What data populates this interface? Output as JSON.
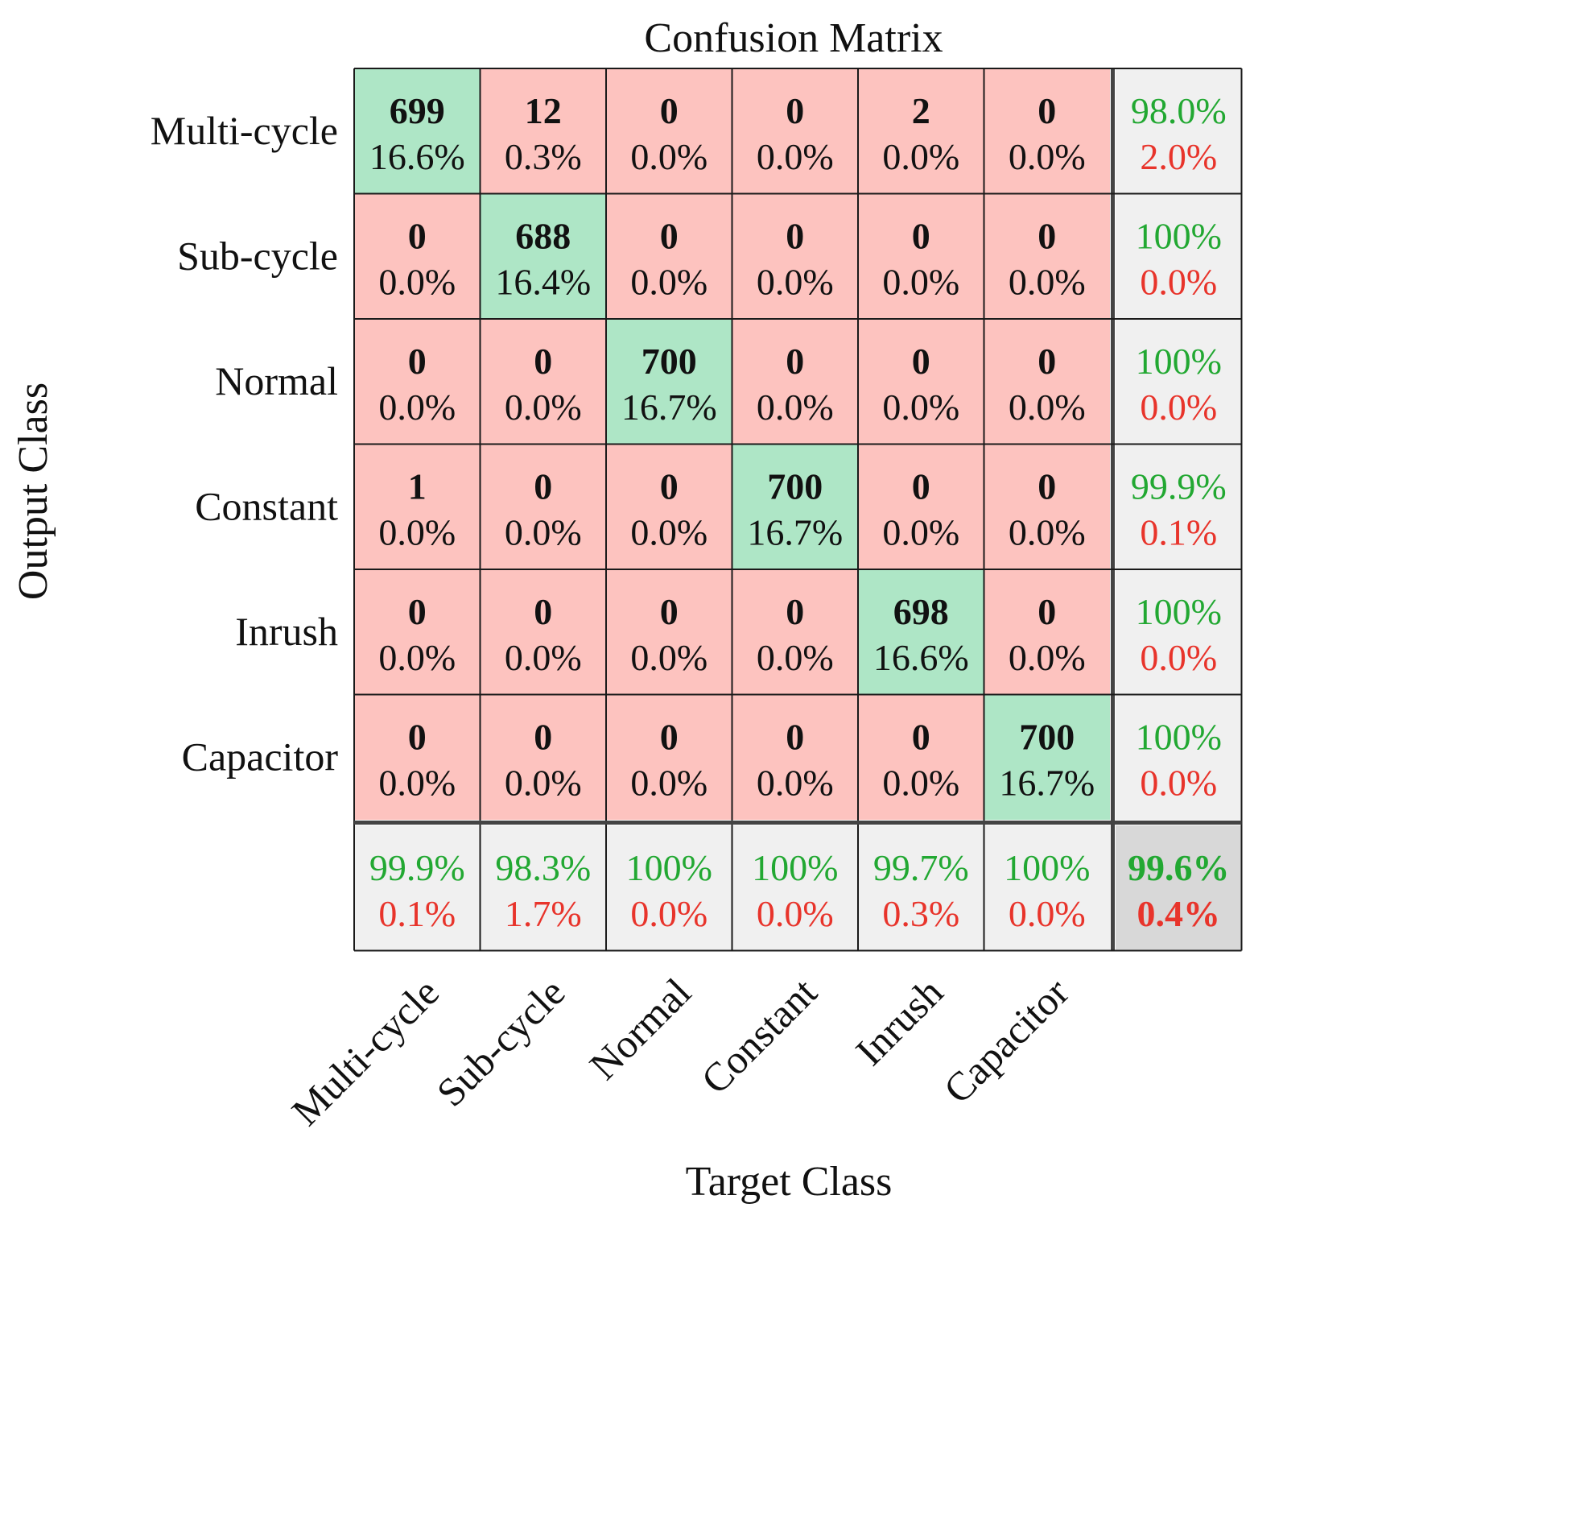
{
  "chart_data": {
    "type": "table",
    "title": "Confusion Matrix",
    "xlabel": "Target Class",
    "ylabel": "Output Class",
    "classes": [
      "Multi-cycle",
      "Sub-cycle",
      "Normal",
      "Constant",
      "Inrush",
      "Capacitor"
    ],
    "matrix": [
      [
        699,
        12,
        0,
        0,
        2,
        0
      ],
      [
        0,
        688,
        0,
        0,
        0,
        0
      ],
      [
        0,
        0,
        700,
        0,
        0,
        0
      ],
      [
        1,
        0,
        0,
        700,
        0,
        0
      ],
      [
        0,
        0,
        0,
        0,
        698,
        0
      ],
      [
        0,
        0,
        0,
        0,
        0,
        700
      ]
    ],
    "percents": [
      [
        "16.6%",
        "0.3%",
        "0.0%",
        "0.0%",
        "0.0%",
        "0.0%"
      ],
      [
        "0.0%",
        "16.4%",
        "0.0%",
        "0.0%",
        "0.0%",
        "0.0%"
      ],
      [
        "0.0%",
        "0.0%",
        "16.7%",
        "0.0%",
        "0.0%",
        "0.0%"
      ],
      [
        "0.0%",
        "0.0%",
        "0.0%",
        "16.7%",
        "0.0%",
        "0.0%"
      ],
      [
        "0.0%",
        "0.0%",
        "0.0%",
        "0.0%",
        "16.6%",
        "0.0%"
      ],
      [
        "0.0%",
        "0.0%",
        "0.0%",
        "0.0%",
        "0.0%",
        "16.7%"
      ]
    ],
    "row_summary": [
      {
        "correct": "98.0%",
        "error": "2.0%"
      },
      {
        "correct": "100%",
        "error": "0.0%"
      },
      {
        "correct": "100%",
        "error": "0.0%"
      },
      {
        "correct": "99.9%",
        "error": "0.1%"
      },
      {
        "correct": "100%",
        "error": "0.0%"
      },
      {
        "correct": "100%",
        "error": "0.0%"
      }
    ],
    "col_summary": [
      {
        "correct": "99.9%",
        "error": "0.1%"
      },
      {
        "correct": "98.3%",
        "error": "1.7%"
      },
      {
        "correct": "100%",
        "error": "0.0%"
      },
      {
        "correct": "100%",
        "error": "0.0%"
      },
      {
        "correct": "99.7%",
        "error": "0.3%"
      },
      {
        "correct": "100%",
        "error": "0.0%"
      }
    ],
    "overall": {
      "correct": "99.6%",
      "error": "0.4%"
    }
  },
  "colors": {
    "correct_cell": "#aee6c6",
    "error_cell": "#fdc3bf",
    "summary_cell": "#f0f0f0",
    "overall_cell": "#d8d8d8",
    "correct_text": "#22a832",
    "error_text": "#e8342b",
    "text": "#111111",
    "border": "#1a1a1a"
  }
}
